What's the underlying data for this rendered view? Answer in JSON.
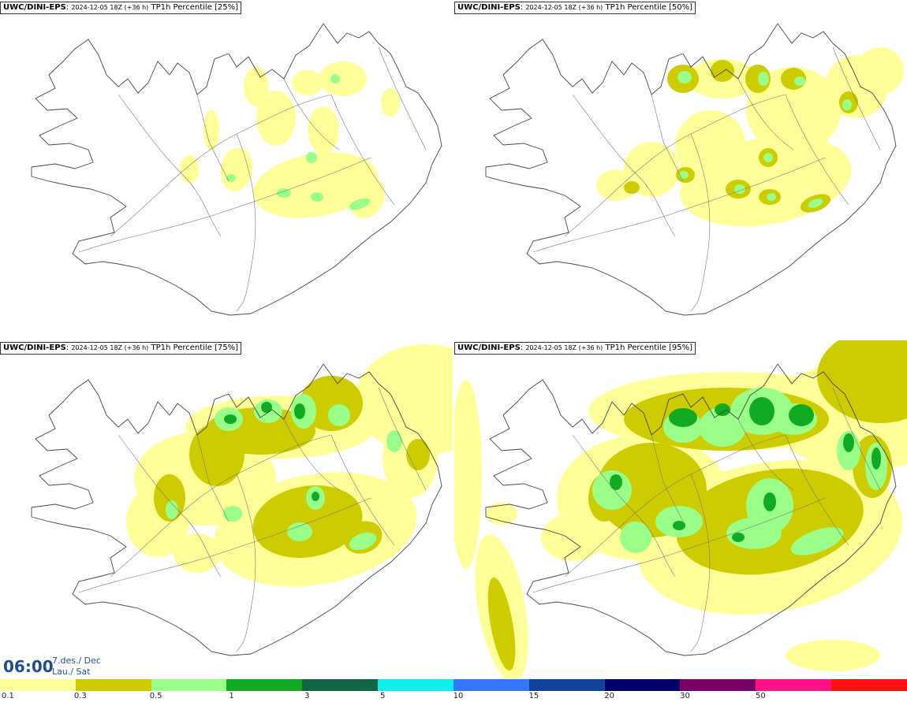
{
  "panels": [
    {
      "model": "UWC/DINI-EPS",
      "run": "2024-12-05 18Z (+36 h)",
      "field": "TP1h Percentile [25%]",
      "coverage": "light"
    },
    {
      "model": "UWC/DINI-EPS",
      "run": "2024-12-05 18Z (+36 h)",
      "field": "TP1h Percentile [50%]",
      "coverage": "moderate"
    },
    {
      "model": "UWC/DINI-EPS",
      "run": "2024-12-05 18Z (+36 h)",
      "field": "TP1h Percentile [75%]",
      "coverage": "heavy"
    },
    {
      "model": "UWC/DINI-EPS",
      "run": "2024-12-05 18Z (+36 h)",
      "field": "TP1h Percentile [95%]",
      "coverage": "very-heavy"
    }
  ],
  "valid_time": {
    "clock": "06:00",
    "date_line": "7.des./ Dec",
    "day_line": "Lau./ Sat"
  },
  "colorbar": {
    "colors": [
      "#ffff99",
      "#cccc00",
      "#99ff88",
      "#11aa22",
      "#116644",
      "#11eeee",
      "#3377ff",
      "#114499",
      "#000066",
      "#770066",
      "#ff1188",
      "#ff1111"
    ],
    "labels": [
      "0.1",
      "0.3",
      "0.5",
      "1",
      "3",
      "5",
      "10",
      "15",
      "20",
      "30",
      "50"
    ]
  }
}
